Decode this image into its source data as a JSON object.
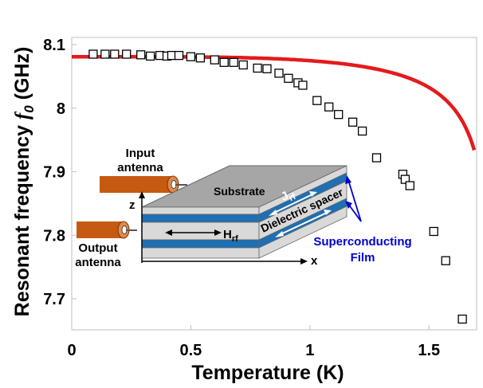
{
  "chart_data": {
    "type": "scatter",
    "xlabel": "Temperature (K)",
    "ylabel_main": "Resonant frequency ",
    "ylabel_symbol": "f",
    "ylabel_sub": "0",
    "ylabel_unit": " (GHz)",
    "xlim": [
      0,
      1.7
    ],
    "ylim": [
      7.65,
      8.1
    ],
    "x_ticks": [
      0,
      0.5,
      1,
      1.5
    ],
    "x_tick_labels": [
      "0",
      "0.5",
      "1",
      "1.5"
    ],
    "y_ticks": [
      7.7,
      7.8,
      7.9,
      8,
      8.1
    ],
    "y_tick_labels": [
      "7.7",
      "7.8",
      "7.9",
      "8",
      "8.1"
    ],
    "grid": false,
    "series": [
      {
        "kind": "markers",
        "marker": "open-square",
        "color": "#000000",
        "x": [
          0.09,
          0.14,
          0.18,
          0.23,
          0.29,
          0.33,
          0.37,
          0.4,
          0.42,
          0.45,
          0.5,
          0.54,
          0.6,
          0.64,
          0.68,
          0.72,
          0.78,
          0.82,
          0.87,
          0.91,
          0.95,
          0.97,
          1.03,
          1.08,
          1.12,
          1.18,
          1.22,
          1.28,
          1.39,
          1.4,
          1.42,
          1.52,
          1.57,
          1.64
        ],
        "y": [
          8.085,
          8.085,
          8.085,
          8.085,
          8.084,
          8.082,
          8.083,
          8.082,
          8.083,
          8.083,
          8.081,
          8.079,
          8.076,
          8.072,
          8.072,
          8.068,
          8.063,
          8.062,
          8.055,
          8.047,
          8.04,
          8.036,
          8.012,
          8.002,
          7.99,
          7.978,
          7.964,
          7.922,
          7.896,
          7.888,
          7.878,
          7.806,
          7.76,
          7.668
        ]
      },
      {
        "kind": "fit-line",
        "color": "#e41a1c",
        "model": {
          "f0": 8.081,
          "a": 0.0118,
          "tc": 1.786
        }
      }
    ]
  },
  "inset": {
    "substrate_label": "Substrate",
    "dielectric_label": "Dielectric spacer",
    "jrf_main": "J",
    "jrf_sub": "rf",
    "hrf_main": "H",
    "hrf_sub": "rf",
    "superconducting_label": "Superconducting",
    "film_label": "Film",
    "z_label": "z",
    "x_label": "x",
    "input_antenna_line1": "Input",
    "input_antenna_line2": "antenna",
    "output_antenna_line1": "Output",
    "output_antenna_line2": "antenna",
    "colors": {
      "top_face": "#a6a6a6",
      "side_gray": "#d9d9d9",
      "film_blue": "#1f6fb3",
      "annot_blue": "#0000cc",
      "antenna": "#c55a11"
    }
  }
}
